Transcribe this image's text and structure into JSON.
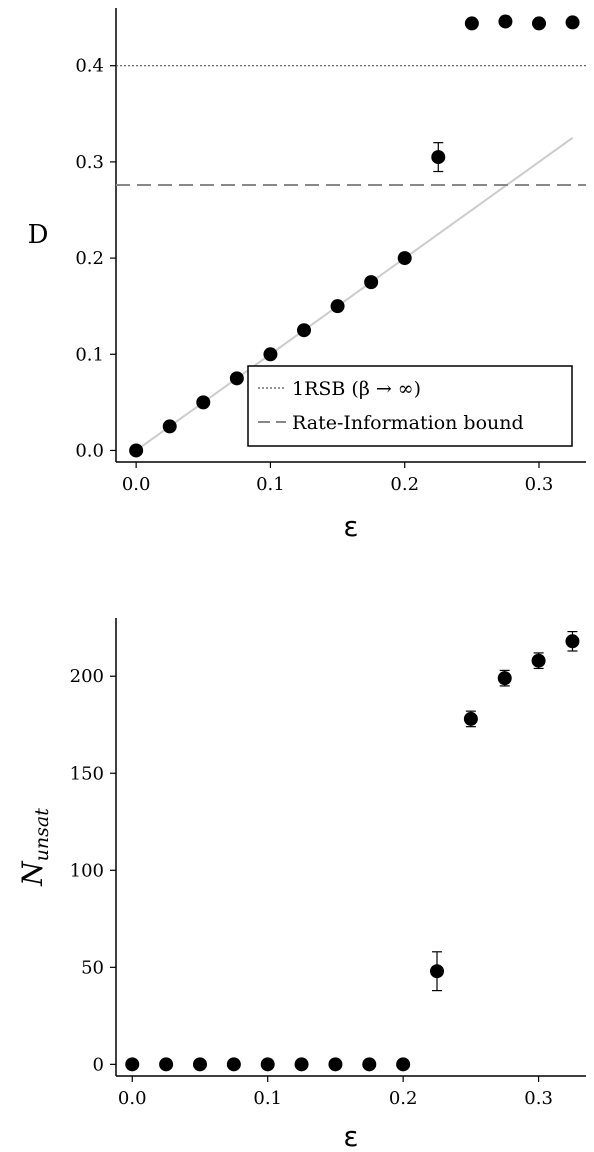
{
  "chart_data": [
    {
      "type": "scatter",
      "xlabel": "ε",
      "ylabel": "D",
      "xlim": [
        -0.015,
        0.335
      ],
      "ylim": [
        -0.012,
        0.46
      ],
      "xticks": [
        0.0,
        0.1,
        0.2,
        0.3
      ],
      "xtick_labels": [
        "0.0",
        "0.1",
        "0.2",
        "0.3"
      ],
      "yticks": [
        0.0,
        0.1,
        0.2,
        0.3,
        0.4
      ],
      "ytick_labels": [
        "0.0",
        "0.1",
        "0.2",
        "0.3",
        "0.4"
      ],
      "grid": false,
      "legend_position": "lower-right",
      "series": [
        {
          "style": "markers",
          "x": [
            0.0,
            0.025,
            0.05,
            0.075,
            0.1,
            0.125,
            0.15,
            0.175,
            0.2,
            0.225,
            0.25,
            0.275,
            0.3,
            0.325
          ],
          "y": [
            0.0,
            0.025,
            0.05,
            0.075,
            0.1,
            0.125,
            0.15,
            0.175,
            0.2,
            0.305,
            0.444,
            0.446,
            0.444,
            0.445
          ],
          "yerr": [
            0,
            0,
            0,
            0,
            0,
            0,
            0,
            0,
            0,
            0.015,
            0.004,
            0.004,
            0.004,
            0.004
          ],
          "color": "#000000"
        },
        {
          "style": "line",
          "x": [
            0.0,
            0.325
          ],
          "y": [
            0.0,
            0.325
          ],
          "color": "#cccccc"
        },
        {
          "name": "1RSB (β → ∞)",
          "style": "dotted-hline",
          "y": 0.4,
          "color": "#555555"
        },
        {
          "name": "Rate-Information bound",
          "style": "dashed-hline",
          "y": 0.276,
          "color": "#888888"
        }
      ]
    },
    {
      "type": "scatter",
      "xlabel": "ε",
      "ylabel": "N",
      "ylabel_subscript": "unsat",
      "xlim": [
        -0.012,
        0.335
      ],
      "ylim": [
        -6,
        230
      ],
      "xticks": [
        0.0,
        0.1,
        0.2,
        0.3
      ],
      "xtick_labels": [
        "0.0",
        "0.1",
        "0.2",
        "0.3"
      ],
      "yticks": [
        0,
        50,
        100,
        150,
        200
      ],
      "ytick_labels": [
        "0",
        "50",
        "100",
        "150",
        "200"
      ],
      "grid": false,
      "series": [
        {
          "style": "markers",
          "x": [
            0.0,
            0.025,
            0.05,
            0.075,
            0.1,
            0.125,
            0.15,
            0.175,
            0.2,
            0.225,
            0.25,
            0.275,
            0.3,
            0.325
          ],
          "y": [
            0,
            0,
            0,
            0,
            0,
            0,
            0,
            0,
            0,
            48,
            178,
            199,
            208,
            218
          ],
          "yerr": [
            0,
            0,
            0,
            0,
            0,
            0,
            0,
            0,
            0,
            10,
            4,
            4,
            4,
            5
          ],
          "color": "#000000"
        }
      ]
    }
  ]
}
